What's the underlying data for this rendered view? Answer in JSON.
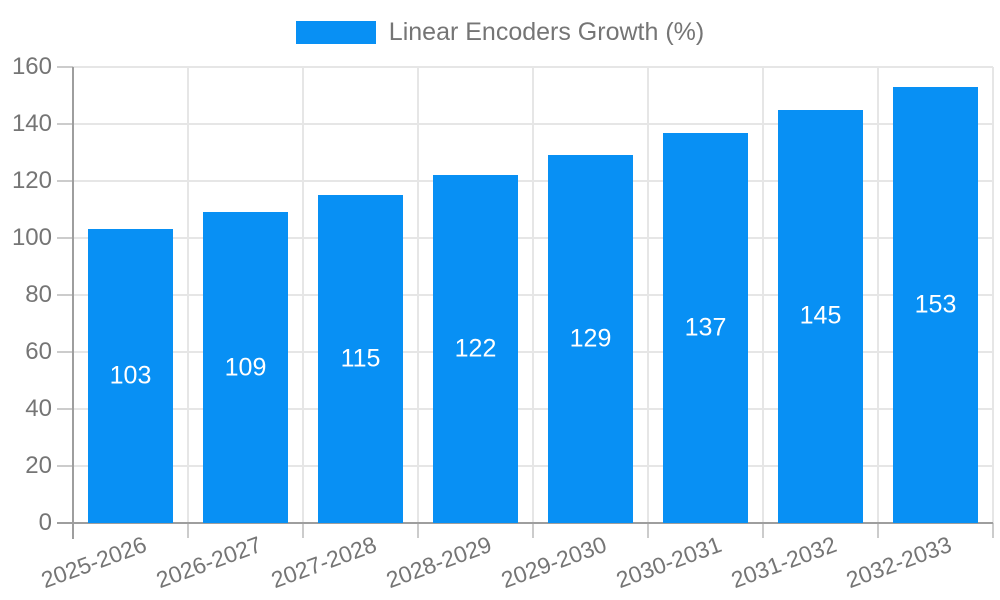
{
  "legend": {
    "label": "Linear Encoders Growth (%)"
  },
  "colors": {
    "bar": "#0890f4",
    "grid": "#e6e6e6",
    "axis": "#9e9e9e",
    "tick": "#cccccc",
    "axis_text": "#757575",
    "value_text": "#ffffff",
    "background": "#ffffff"
  },
  "chart_data": {
    "type": "bar",
    "title": "",
    "categories": [
      "2025-2026",
      "2026-2027",
      "2027-2028",
      "2028-2029",
      "2029-2030",
      "2030-2031",
      "2031-2032",
      "2032-2033"
    ],
    "series": [
      {
        "name": "Linear Encoders Growth (%)",
        "values": [
          103,
          109,
          115,
          122,
          129,
          137,
          145,
          153
        ]
      }
    ],
    "xlabel": "",
    "ylabel": "",
    "ylim": [
      0,
      160
    ],
    "yticks": [
      0,
      20,
      40,
      60,
      80,
      100,
      120,
      140,
      160
    ],
    "grid": "on",
    "legend_position": "top-center",
    "bar_value_labels": true,
    "x_tick_rotation_deg": -20
  }
}
